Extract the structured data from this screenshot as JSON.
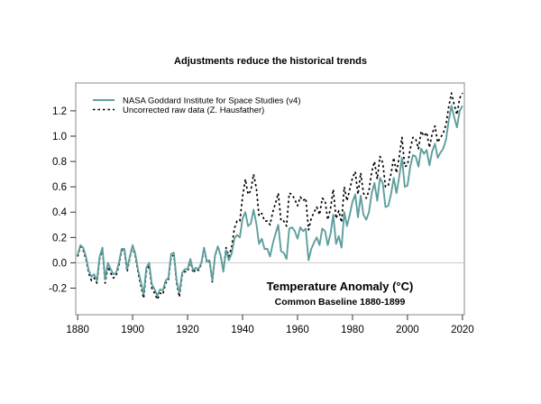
{
  "title": "Adjustments reduce the historical trends",
  "colors": {
    "background": "#ffffff",
    "accent_teal": "#5F9E9E",
    "raw_black": "#000000",
    "box_border": "#888888",
    "zero_line": "#C9C9C9",
    "tick": "#333333",
    "text": "#000000"
  },
  "chart_data": {
    "type": "line",
    "title": "Adjustments reduce the historical trends",
    "annotation": "Temperature Anomaly (°C)",
    "annotation_sub": "Common Baseline 1880-1899",
    "xlabel": "",
    "ylabel": "",
    "grid": false,
    "zero_line": true,
    "legend_position": "top-left",
    "xlim": [
      1879.3,
      2020.7
    ],
    "ylim": [
      -0.41,
      1.42
    ],
    "x_ticks": [
      1880,
      1900,
      1920,
      1940,
      1960,
      1980,
      2000,
      2020
    ],
    "y_ticks": [
      -0.2,
      0.0,
      0.2,
      0.4,
      0.6,
      0.8,
      1.0,
      1.2
    ],
    "years": [
      1880,
      1881,
      1882,
      1883,
      1884,
      1885,
      1886,
      1887,
      1888,
      1889,
      1890,
      1891,
      1892,
      1893,
      1894,
      1895,
      1896,
      1897,
      1898,
      1899,
      1900,
      1901,
      1902,
      1903,
      1904,
      1905,
      1906,
      1907,
      1908,
      1909,
      1910,
      1911,
      1912,
      1913,
      1914,
      1915,
      1916,
      1917,
      1918,
      1919,
      1920,
      1921,
      1922,
      1923,
      1924,
      1925,
      1926,
      1927,
      1928,
      1929,
      1930,
      1931,
      1932,
      1933,
      1934,
      1935,
      1936,
      1937,
      1938,
      1939,
      1940,
      1941,
      1942,
      1943,
      1944,
      1945,
      1946,
      1947,
      1948,
      1949,
      1950,
      1951,
      1952,
      1953,
      1954,
      1955,
      1956,
      1957,
      1958,
      1959,
      1960,
      1961,
      1962,
      1963,
      1964,
      1965,
      1966,
      1967,
      1968,
      1969,
      1970,
      1971,
      1972,
      1973,
      1974,
      1975,
      1976,
      1977,
      1978,
      1979,
      1980,
      1981,
      1982,
      1983,
      1984,
      1985,
      1986,
      1987,
      1988,
      1989,
      1990,
      1991,
      1992,
      1993,
      1994,
      1995,
      1996,
      1997,
      1998,
      1999,
      2000,
      2001,
      2002,
      2003,
      2004,
      2005,
      2006,
      2007,
      2008,
      2009,
      2010,
      2011,
      2012,
      2013,
      2014,
      2015,
      2016,
      2017,
      2018,
      2019,
      2020
    ],
    "series": [
      {
        "name": "NASA Goddard Institute for Space Studies (v4)",
        "color": "#5F9E9E",
        "style": "solid",
        "values": [
          0.06,
          0.14,
          0.12,
          0.05,
          -0.06,
          -0.11,
          -0.09,
          -0.14,
          0.05,
          0.12,
          -0.13,
          0.0,
          -0.05,
          -0.09,
          -0.08,
          0.0,
          0.11,
          0.11,
          -0.05,
          0.05,
          0.14,
          0.07,
          -0.06,
          -0.15,
          -0.25,
          -0.04,
          0.0,
          -0.17,
          -0.21,
          -0.26,
          -0.21,
          -0.22,
          -0.14,
          -0.12,
          0.07,
          0.08,
          -0.14,
          -0.24,
          -0.08,
          -0.05,
          -0.05,
          0.03,
          -0.06,
          -0.04,
          -0.05,
          0.0,
          0.12,
          0.01,
          0.02,
          -0.14,
          0.06,
          0.13,
          0.06,
          -0.07,
          0.1,
          0.02,
          0.07,
          0.19,
          0.22,
          0.2,
          0.35,
          0.4,
          0.29,
          0.31,
          0.42,
          0.31,
          0.15,
          0.19,
          0.11,
          0.11,
          0.05,
          0.15,
          0.23,
          0.3,
          0.09,
          0.08,
          0.03,
          0.27,
          0.28,
          0.25,
          0.19,
          0.28,
          0.25,
          0.27,
          0.02,
          0.11,
          0.16,
          0.2,
          0.14,
          0.27,
          0.25,
          0.14,
          0.23,
          0.38,
          0.15,
          0.21,
          0.12,
          0.4,
          0.29,
          0.38,
          0.48,
          0.54,
          0.36,
          0.53,
          0.38,
          0.34,
          0.4,
          0.55,
          0.63,
          0.49,
          0.67,
          0.63,
          0.44,
          0.45,
          0.54,
          0.67,
          0.55,
          0.68,
          0.83,
          0.6,
          0.61,
          0.76,
          0.85,
          0.84,
          0.76,
          0.9,
          0.86,
          0.89,
          0.77,
          0.88,
          0.94,
          0.83,
          0.87,
          0.9,
          0.97,
          1.12,
          1.24,
          1.15,
          1.07,
          1.2,
          1.24
        ]
      },
      {
        "name": "Uncorrected raw data (Z. Hausfather)",
        "color": "#000000",
        "style": "dashed",
        "values": [
          0.05,
          0.13,
          0.1,
          0.03,
          -0.08,
          -0.14,
          -0.12,
          -0.16,
          0.03,
          0.11,
          -0.16,
          -0.03,
          -0.08,
          -0.12,
          -0.1,
          -0.02,
          0.1,
          0.09,
          -0.07,
          0.04,
          0.13,
          0.05,
          -0.08,
          -0.18,
          -0.28,
          -0.07,
          -0.02,
          -0.2,
          -0.24,
          -0.29,
          -0.24,
          -0.25,
          -0.16,
          -0.14,
          0.05,
          0.06,
          -0.16,
          -0.27,
          -0.1,
          -0.07,
          -0.07,
          0.02,
          -0.08,
          -0.05,
          -0.06,
          -0.01,
          0.11,
          0.0,
          0.01,
          -0.15,
          0.05,
          0.13,
          0.06,
          -0.06,
          0.12,
          0.05,
          0.12,
          0.27,
          0.33,
          0.33,
          0.52,
          0.66,
          0.54,
          0.57,
          0.7,
          0.59,
          0.37,
          0.39,
          0.33,
          0.33,
          0.3,
          0.4,
          0.47,
          0.55,
          0.33,
          0.33,
          0.29,
          0.55,
          0.54,
          0.5,
          0.45,
          0.52,
          0.49,
          0.51,
          0.26,
          0.35,
          0.4,
          0.44,
          0.38,
          0.51,
          0.49,
          0.34,
          0.43,
          0.58,
          0.35,
          0.41,
          0.32,
          0.6,
          0.49,
          0.58,
          0.67,
          0.72,
          0.54,
          0.71,
          0.55,
          0.51,
          0.57,
          0.72,
          0.8,
          0.66,
          0.84,
          0.79,
          0.6,
          0.61,
          0.7,
          0.83,
          0.71,
          0.84,
          0.99,
          0.76,
          0.77,
          0.9,
          0.99,
          0.98,
          0.9,
          1.04,
          1.0,
          1.03,
          0.91,
          1.02,
          1.08,
          0.95,
          0.99,
          1.02,
          1.09,
          1.23,
          1.34,
          1.25,
          1.17,
          1.3,
          1.34
        ]
      }
    ]
  }
}
